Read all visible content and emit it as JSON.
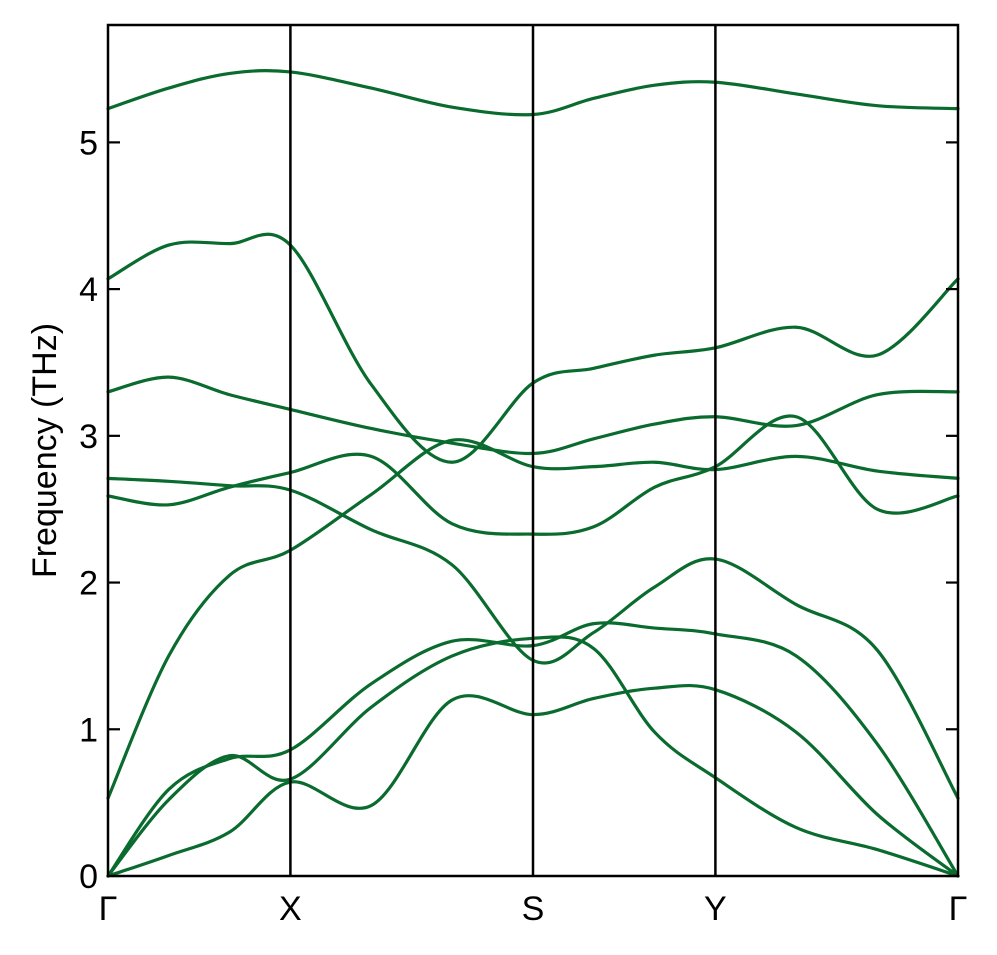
{
  "chart_data": {
    "type": "line",
    "title": "",
    "xlabel": "",
    "ylabel": "Frequency (THz)",
    "ylim": [
      0,
      5.8
    ],
    "yticks": [
      0,
      1,
      2,
      3,
      4,
      5
    ],
    "xlim": [
      0,
      4.66
    ],
    "high_symmetry_points": [
      {
        "label": "Γ",
        "x": 0
      },
      {
        "label": "X",
        "x": 1.0
      },
      {
        "label": "S",
        "x": 2.33
      },
      {
        "label": "Y",
        "x": 3.33
      },
      {
        "label": "Γ",
        "x": 4.66
      }
    ],
    "grid": false,
    "legend": "none",
    "line_color": "#0a6b2e",
    "x": [
      0,
      0.333,
      0.667,
      1.0,
      1.443,
      1.887,
      2.33,
      2.663,
      2.997,
      3.33,
      3.773,
      4.217,
      4.66
    ],
    "series": [
      {
        "values": [
          0.0,
          0.14,
          0.3,
          0.64,
          0.48,
          1.2,
          1.1,
          1.21,
          1.28,
          1.27,
          0.98,
          0.42,
          0.0
        ]
      },
      {
        "values": [
          0.0,
          0.52,
          0.82,
          0.66,
          1.15,
          1.5,
          1.62,
          1.55,
          0.98,
          0.67,
          0.33,
          0.18,
          0.0
        ]
      },
      {
        "values": [
          0.0,
          0.59,
          0.8,
          0.86,
          1.31,
          1.6,
          1.57,
          1.72,
          1.69,
          1.65,
          1.5,
          0.9,
          0.0
        ]
      },
      {
        "values": [
          0.53,
          1.5,
          2.05,
          2.22,
          2.6,
          2.97,
          2.79,
          2.79,
          2.82,
          2.77,
          2.86,
          2.76,
          2.71
        ]
      },
      {
        "values": [
          2.59,
          2.53,
          2.65,
          2.75,
          2.86,
          2.4,
          2.33,
          2.38,
          2.65,
          2.79,
          3.13,
          2.5,
          2.59
        ]
      },
      {
        "values": [
          2.71,
          2.69,
          2.66,
          2.63,
          2.36,
          2.12,
          1.47,
          1.66,
          1.97,
          2.16,
          1.85,
          1.54,
          0.53
        ]
      },
      {
        "values": [
          3.3,
          3.4,
          3.28,
          3.18,
          3.05,
          2.95,
          2.88,
          2.98,
          3.08,
          3.13,
          3.07,
          3.28,
          3.3
        ]
      },
      {
        "values": [
          4.07,
          4.3,
          4.31,
          4.3,
          3.35,
          2.82,
          3.36,
          3.46,
          3.55,
          3.6,
          3.74,
          3.55,
          4.07
        ]
      },
      {
        "values": [
          5.23,
          5.37,
          5.47,
          5.48,
          5.37,
          5.24,
          5.19,
          5.3,
          5.39,
          5.41,
          5.33,
          5.25,
          5.23
        ]
      }
    ]
  }
}
